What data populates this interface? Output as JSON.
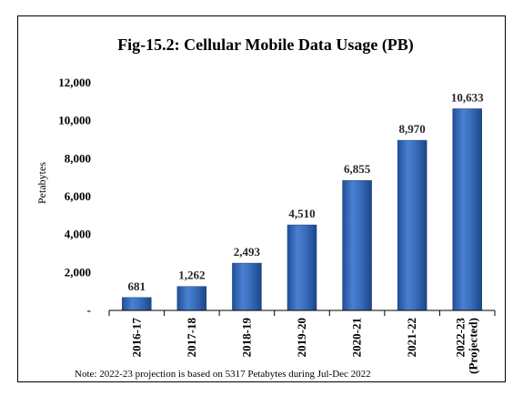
{
  "chart_data": {
    "type": "bar",
    "title": "Fig-15.2: Cellular Mobile Data Usage (PB)",
    "ylabel": "Petabytes",
    "xlabel": "",
    "categories": [
      "2016-17",
      "2017-18",
      "2018-19",
      "2019-20",
      "2020-21",
      "2021-22",
      "2022-23 (Projected)"
    ],
    "category_lines": [
      [
        "2016-17"
      ],
      [
        "2017-18"
      ],
      [
        "2018-19"
      ],
      [
        "2019-20"
      ],
      [
        "2020-21"
      ],
      [
        "2021-22"
      ],
      [
        "2022-23",
        "(Projected)"
      ]
    ],
    "values": [
      681,
      1262,
      2493,
      4510,
      6855,
      8970,
      10633
    ],
    "value_labels": [
      "681",
      "1,262",
      "2,493",
      "4,510",
      "6,855",
      "8,970",
      "10,633"
    ],
    "ylim": [
      0,
      12000
    ],
    "yticks": [
      0,
      2000,
      4000,
      6000,
      8000,
      10000,
      12000
    ],
    "ytick_labels": [
      "-",
      "2,000",
      "4,000",
      "6,000",
      "8,000",
      "10,000",
      "12,000"
    ],
    "grid": false,
    "legend": "none",
    "bar_color": "#3a6fbf",
    "note": "Note: 2022-23 projection is based on 5317 Petabytes during Jul-Dec 2022"
  }
}
